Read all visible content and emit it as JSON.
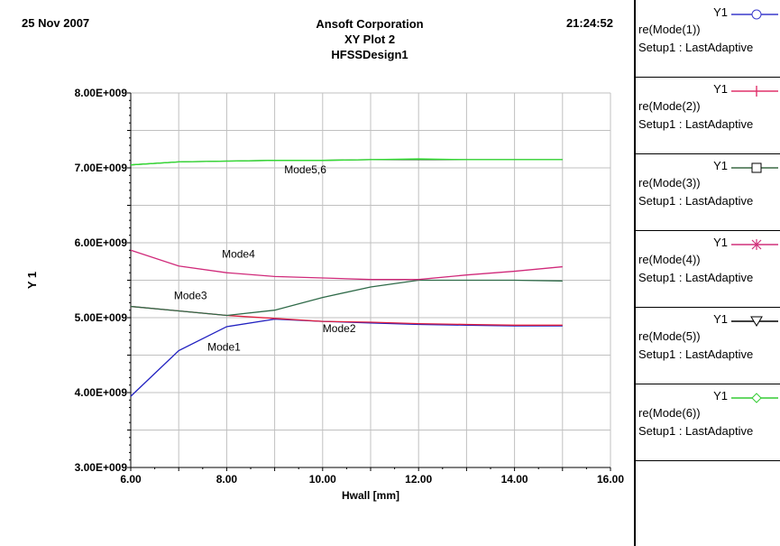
{
  "header": {
    "date": "25 Nov 2007",
    "time": "21:24:52",
    "company": "Ansoft Corporation",
    "plot_name": "XY Plot 2",
    "design": "HFSSDesign1"
  },
  "legend": [
    {
      "y": "Y1",
      "expr": "re(Mode(1))",
      "setup": "Setup1 : LastAdaptive",
      "color": "#3a3acc",
      "marker": "circle"
    },
    {
      "y": "Y1",
      "expr": "re(Mode(2))",
      "setup": "Setup1 : LastAdaptive",
      "color": "#e0306a",
      "marker": "plus"
    },
    {
      "y": "Y1",
      "expr": "re(Mode(3))",
      "setup": "Setup1 : LastAdaptive",
      "color": "#3a6a44",
      "marker": "square"
    },
    {
      "y": "Y1",
      "expr": "re(Mode(4))",
      "setup": "Setup1 : LastAdaptive",
      "color": "#d0307a",
      "marker": "star"
    },
    {
      "y": "Y1",
      "expr": "re(Mode(5))",
      "setup": "Setup1 : LastAdaptive",
      "color": "#000000",
      "marker": "triangle-down"
    },
    {
      "y": "Y1",
      "expr": "re(Mode(6))",
      "setup": "Setup1 : LastAdaptive",
      "color": "#33cc33",
      "marker": "diamond"
    }
  ],
  "chart_data": {
    "type": "line",
    "xlabel": "Hwall [mm]",
    "ylabel": "Y 1",
    "xlim": [
      6,
      16
    ],
    "ylim": [
      3000000000,
      8000000000
    ],
    "x_ticks": [
      "6.00",
      "8.00",
      "10.00",
      "12.00",
      "14.00",
      "16.00"
    ],
    "y_ticks": [
      "3.00E+009",
      "4.00E+009",
      "5.00E+009",
      "6.00E+009",
      "7.00E+009",
      "8.00E+009"
    ],
    "grid": true,
    "x": [
      6,
      7,
      8,
      9,
      10,
      11,
      12,
      13,
      14,
      15
    ],
    "series": [
      {
        "values": [
          3950000000,
          4560000000,
          4880000000,
          4980000000,
          4950000000,
          4930000000,
          4910000000,
          4900000000,
          4890000000,
          4890000000
        ],
        "color": "#2020c0"
      },
      {
        "values": [
          5150000000,
          5090000000,
          5030000000,
          4990000000,
          4950000000,
          4940000000,
          4920000000,
          4910000000,
          4900000000,
          4900000000
        ],
        "color": "#e02040"
      },
      {
        "values": [
          5150000000,
          5090000000,
          5030000000,
          5100000000,
          5270000000,
          5410000000,
          5500000000,
          5500000000,
          5500000000,
          5490000000
        ],
        "color": "#2e6a48"
      },
      {
        "values": [
          5900000000,
          5690000000,
          5600000000,
          5550000000,
          5530000000,
          5510000000,
          5510000000,
          5570000000,
          5620000000,
          5680000000
        ],
        "color": "#d02a7a"
      },
      {
        "values": [
          7040000000,
          7080000000,
          7090000000,
          7100000000,
          7100000000,
          7110000000,
          7110000000,
          7110000000,
          7110000000,
          7110000000
        ],
        "color": "#1a6a1a"
      },
      {
        "values": [
          7040000000,
          7080000000,
          7090000000,
          7100000000,
          7100000000,
          7110000000,
          7120000000,
          7110000000,
          7110000000,
          7110000000
        ],
        "color": "#33dd33"
      }
    ],
    "annotations": [
      {
        "text": "Mode5,6",
        "x": 9.2,
        "y": 6930000000
      },
      {
        "text": "Mode4",
        "x": 7.9,
        "y": 5800000000
      },
      {
        "text": "Mode3",
        "x": 6.9,
        "y": 5250000000
      },
      {
        "text": "Mode2",
        "x": 10.0,
        "y": 4810000000
      },
      {
        "text": "Mode1",
        "x": 7.6,
        "y": 4560000000
      }
    ]
  }
}
